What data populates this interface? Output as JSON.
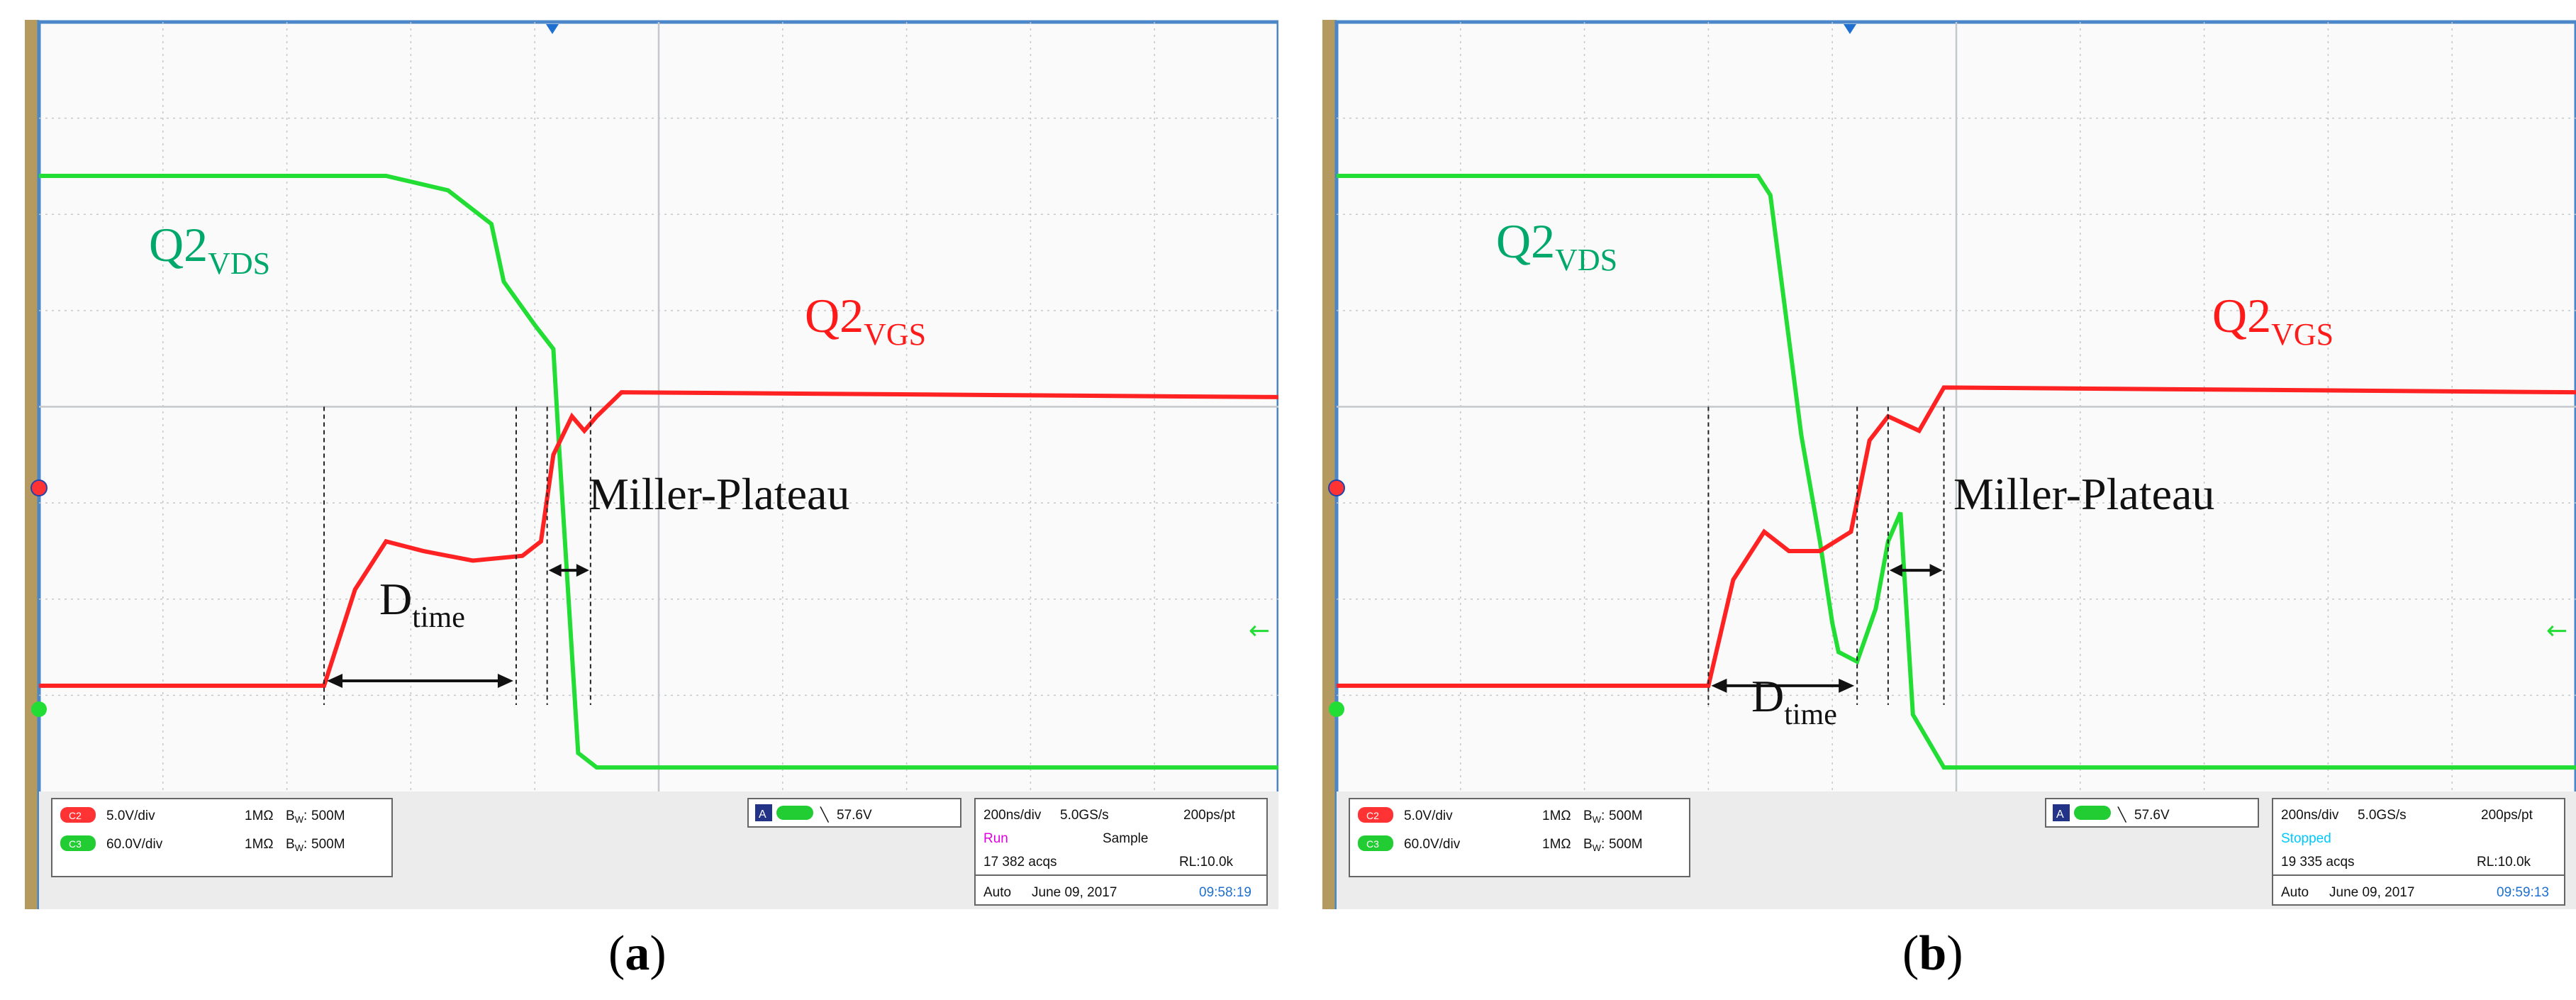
{
  "panels": [
    {
      "id": "a",
      "caption": "a",
      "labels": {
        "vds_main": "Q2",
        "vds_sub": "VDS",
        "vgs_main": "Q2",
        "vgs_sub": "VGS",
        "miller": "Miller-Plateau",
        "dtime_main": "D",
        "dtime_sub": "time"
      },
      "status": {
        "ch2_scale": "5.0V/div",
        "ch2_imp": "1MΩ",
        "ch2_bw": "500M",
        "ch3_scale": "60.0V/div",
        "ch3_imp": "1MΩ",
        "ch3_bw": "500M",
        "trigger_level": "57.6V",
        "timebase": "200ns/div",
        "sample_rate": "5.0GS/s",
        "resolution": "200ps/pt",
        "run_state": "Run",
        "mode": "Sample",
        "acqs": "17 382 acqs",
        "record_length": "RL:10.0k",
        "trigger_mode": "Auto",
        "date": "June 09, 2017",
        "time": "09:58:19"
      }
    },
    {
      "id": "b",
      "caption": "b",
      "labels": {
        "vds_main": "Q2",
        "vds_sub": "VDS",
        "vgs_main": "Q2",
        "vgs_sub": "VGS",
        "miller": "Miller-Plateau",
        "dtime_main": "D",
        "dtime_sub": "time"
      },
      "status": {
        "ch2_scale": "5.0V/div",
        "ch2_imp": "1MΩ",
        "ch2_bw": "500M",
        "ch3_scale": "60.0V/div",
        "ch3_imp": "1MΩ",
        "ch3_bw": "500M",
        "trigger_level": "57.6V",
        "timebase": "200ns/div",
        "sample_rate": "5.0GS/s",
        "resolution": "200ps/pt",
        "run_state": "Stopped",
        "mode": "",
        "acqs": "19 335 acqs",
        "record_length": "RL:10.0k",
        "trigger_mode": "Auto",
        "date": "June 09, 2017",
        "time": "09:59:13"
      }
    }
  ],
  "colors": {
    "vds": "#22dd33",
    "vgs": "#ff2222",
    "label_vds": "#00a86b",
    "label_vgs": "#ff1a1a",
    "frame": "#4a86c8",
    "side_bar": "#b49a5e",
    "grid": "#9aa0a6",
    "run_state_a": "#e000e0",
    "run_state_b": "#00c8ff",
    "time_text": "#1e6fd0"
  },
  "chart_data": [
    {
      "type": "line",
      "x_unit": "div (200 ns/div)",
      "xlim": [
        0,
        10
      ],
      "ylim": [
        0,
        8
      ],
      "series": [
        {
          "name": "Q2VDS",
          "x": [
            0,
            2.8,
            3.3,
            3.65,
            3.75,
            4.0,
            4.15,
            4.2,
            4.35,
            4.5,
            10
          ],
          "y": [
            6.4,
            6.4,
            6.25,
            5.9,
            5.3,
            4.85,
            4.6,
            3.5,
            0.4,
            0.25,
            0.25
          ]
        },
        {
          "name": "Q2VGS",
          "x": [
            0,
            2.3,
            2.55,
            2.8,
            3.1,
            3.5,
            3.9,
            4.05,
            4.15,
            4.3,
            4.4,
            4.5,
            4.7,
            10
          ],
          "y": [
            1.1,
            1.1,
            2.1,
            2.6,
            2.5,
            2.4,
            2.45,
            2.6,
            3.5,
            3.9,
            3.75,
            3.9,
            4.15,
            4.1
          ]
        }
      ],
      "annotations": {
        "dtime_x": [
          2.3,
          3.85
        ],
        "miller_x": [
          4.1,
          4.45
        ]
      }
    },
    {
      "type": "line",
      "x_unit": "div (200 ns/div)",
      "xlim": [
        0,
        10
      ],
      "ylim": [
        0,
        8
      ],
      "series": [
        {
          "name": "Q2VDS",
          "x": [
            0,
            3.4,
            3.5,
            3.6,
            3.75,
            3.9,
            4.0,
            4.05,
            4.2,
            4.35,
            4.45,
            4.55,
            4.65,
            4.9,
            10
          ],
          "y": [
            6.4,
            6.4,
            6.2,
            5.2,
            3.7,
            2.6,
            1.75,
            1.45,
            1.35,
            1.9,
            2.6,
            2.9,
            0.8,
            0.25,
            0.25
          ]
        },
        {
          "name": "Q2VGS",
          "x": [
            0,
            3.0,
            3.2,
            3.45,
            3.65,
            3.9,
            4.15,
            4.3,
            4.45,
            4.7,
            4.9,
            10
          ],
          "y": [
            1.1,
            1.1,
            2.2,
            2.7,
            2.5,
            2.5,
            2.7,
            3.65,
            3.9,
            3.75,
            4.2,
            4.15
          ]
        }
      ],
      "annotations": {
        "dtime_x": [
          3.0,
          4.2
        ],
        "miller_x": [
          4.45,
          4.9
        ]
      }
    }
  ]
}
